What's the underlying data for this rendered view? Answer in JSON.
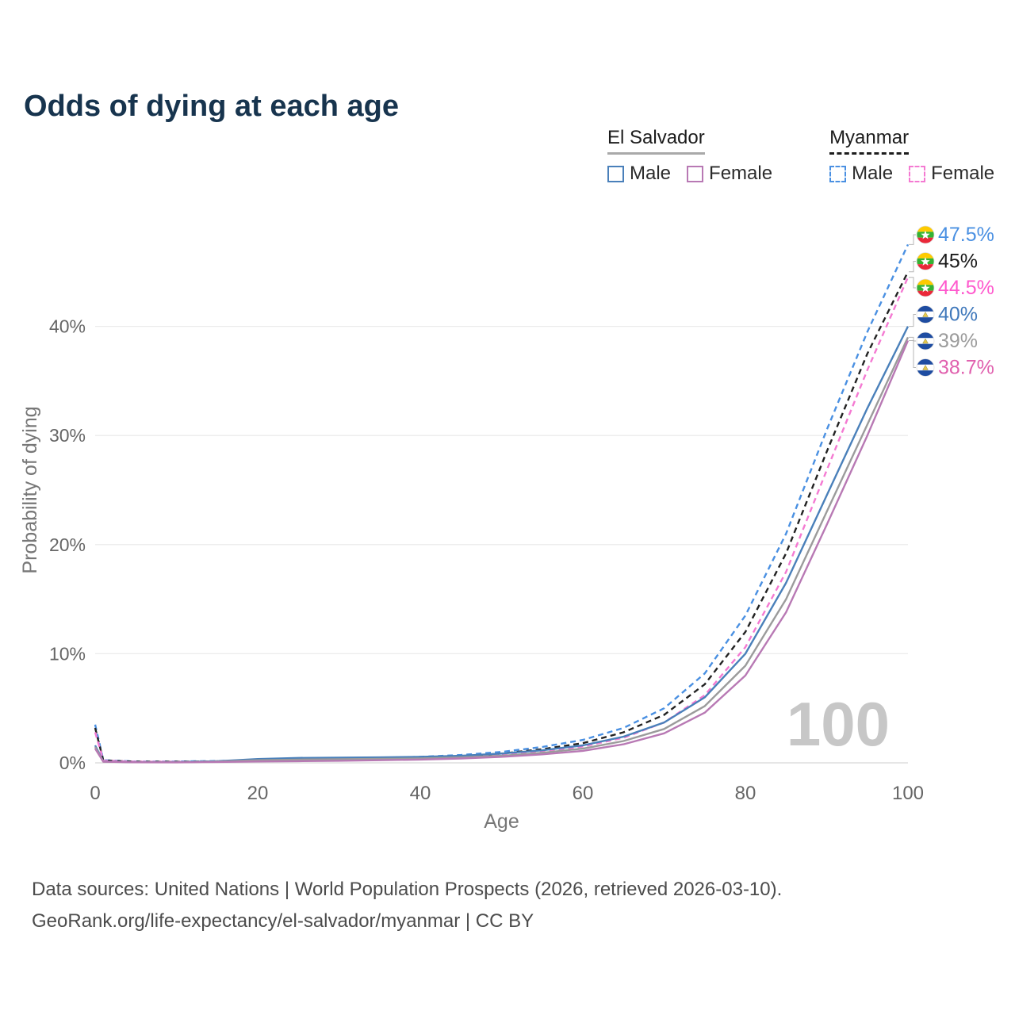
{
  "title": "Odds of dying at each age",
  "legend": {
    "groups": [
      {
        "name": "El Salvador",
        "style": "solid",
        "items": [
          {
            "label": "Male",
            "color": "#4a80ba"
          },
          {
            "label": "Female",
            "color": "#b879b4"
          }
        ]
      },
      {
        "name": "Myanmar",
        "style": "dashed",
        "items": [
          {
            "label": "Male",
            "color": "#4a90e2"
          },
          {
            "label": "Female",
            "color": "#f47ad2"
          }
        ]
      }
    ]
  },
  "chart_data": {
    "type": "line",
    "title": "Odds of dying at each age",
    "xlabel": "Age",
    "ylabel": "Probability of dying",
    "xlim": [
      0,
      100
    ],
    "ylim": [
      0,
      50
    ],
    "xticks": [
      0,
      20,
      40,
      60,
      80,
      100
    ],
    "yticks": [
      0,
      10,
      20,
      30,
      40
    ],
    "grid": "horizontal",
    "watermark": "100",
    "x": [
      0,
      1,
      5,
      10,
      15,
      20,
      25,
      30,
      35,
      40,
      45,
      50,
      55,
      60,
      65,
      70,
      75,
      80,
      85,
      90,
      95,
      100
    ],
    "series": [
      {
        "name": "Myanmar Male",
        "country": "Myanmar",
        "sex": "Male",
        "color": "#4a90e2",
        "label_color": "#4a90e2",
        "dashed": true,
        "end_label": "47.5%",
        "values": [
          3.5,
          0.25,
          0.12,
          0.12,
          0.17,
          0.25,
          0.3,
          0.37,
          0.45,
          0.55,
          0.72,
          1.0,
          1.45,
          2.1,
          3.2,
          5.0,
          8.2,
          13.5,
          21.0,
          30.5,
          39.5,
          47.5
        ]
      },
      {
        "name": "Myanmar Both",
        "country": "Myanmar",
        "sex": "Both",
        "color": "#222222",
        "label_color": "#1a1a1a",
        "dashed": true,
        "end_label": "45%",
        "values": [
          3.2,
          0.22,
          0.11,
          0.1,
          0.14,
          0.2,
          0.25,
          0.3,
          0.37,
          0.46,
          0.6,
          0.85,
          1.25,
          1.8,
          2.8,
          4.4,
          7.2,
          12.0,
          19.2,
          28.5,
          37.5,
          45.0
        ]
      },
      {
        "name": "Myanmar Female",
        "country": "Myanmar",
        "sex": "Female",
        "color": "#f47ad2",
        "label_color": "#ff58cd",
        "dashed": true,
        "end_label": "44.5%",
        "values": [
          2.8,
          0.2,
          0.1,
          0.09,
          0.11,
          0.15,
          0.19,
          0.24,
          0.3,
          0.38,
          0.5,
          0.7,
          1.0,
          1.5,
          2.3,
          3.7,
          6.2,
          10.6,
          17.5,
          26.8,
          36.0,
          44.5
        ]
      },
      {
        "name": "El Salvador Male",
        "country": "El Salvador",
        "sex": "Male",
        "color": "#4a80ba",
        "label_color": "#3f78bb",
        "dashed": false,
        "end_label": "40%",
        "values": [
          1.6,
          0.12,
          0.06,
          0.06,
          0.15,
          0.35,
          0.45,
          0.48,
          0.5,
          0.55,
          0.65,
          0.85,
          1.15,
          1.6,
          2.4,
          3.7,
          6.0,
          10.0,
          16.5,
          24.5,
          32.5,
          40.0
        ]
      },
      {
        "name": "El Salvador Both",
        "country": "El Salvador",
        "sex": "Both",
        "color": "#9b9b9b",
        "label_color": "#9b9b9b",
        "dashed": false,
        "end_label": "39%",
        "values": [
          1.45,
          0.11,
          0.05,
          0.05,
          0.11,
          0.24,
          0.3,
          0.33,
          0.36,
          0.4,
          0.5,
          0.65,
          0.92,
          1.3,
          2.0,
          3.1,
          5.2,
          8.9,
          15.0,
          23.0,
          31.0,
          39.0
        ]
      },
      {
        "name": "El Salvador Female",
        "country": "El Salvador",
        "sex": "Female",
        "color": "#b879b4",
        "label_color": "#e060ae",
        "dashed": false,
        "end_label": "38.7%",
        "values": [
          1.3,
          0.1,
          0.05,
          0.04,
          0.08,
          0.12,
          0.15,
          0.19,
          0.24,
          0.3,
          0.4,
          0.55,
          0.78,
          1.1,
          1.7,
          2.7,
          4.6,
          8.0,
          13.8,
          21.8,
          30.0,
          38.7
        ]
      }
    ]
  },
  "footer": {
    "line1": "Data sources: United Nations | World Population Prospects (2026, retrieved 2026-03-10).",
    "line2": "GeoRank.org/life-expectancy/el-salvador/myanmar | CC BY"
  }
}
